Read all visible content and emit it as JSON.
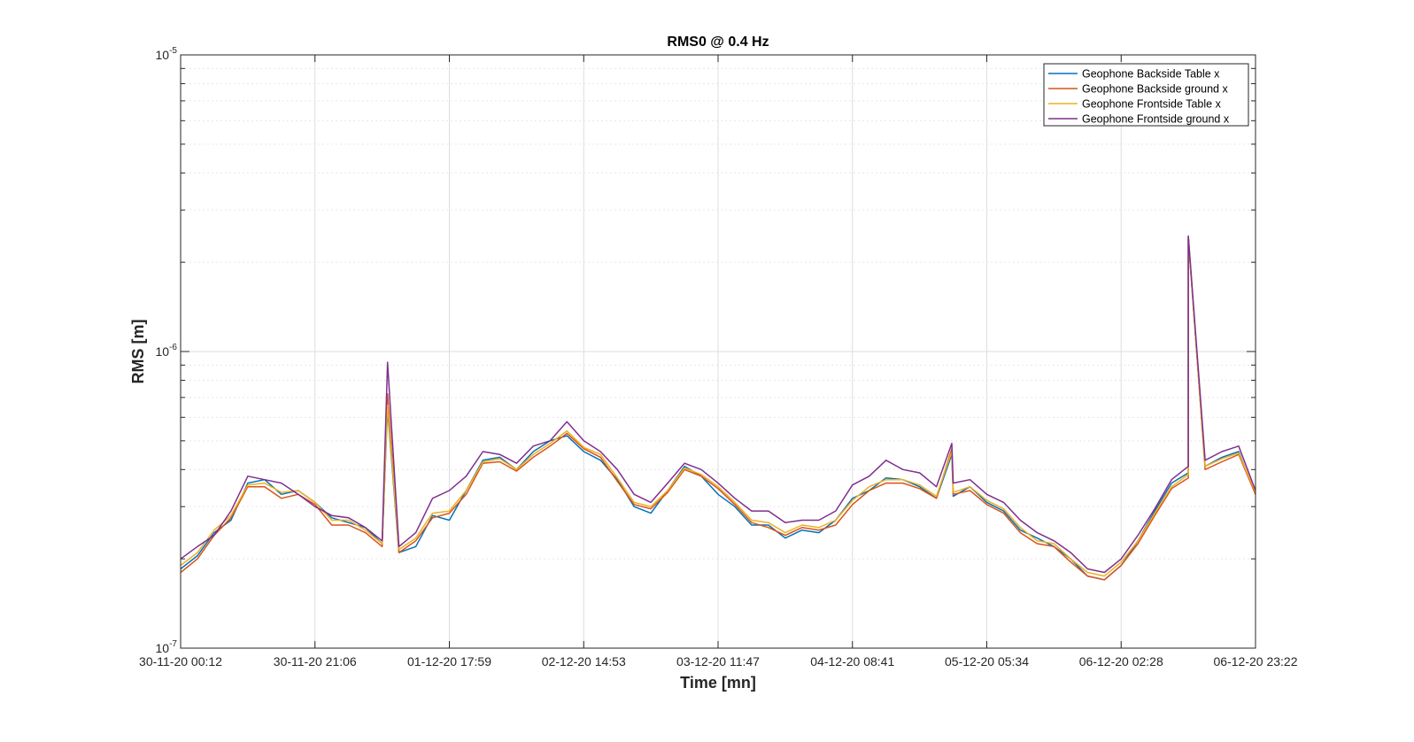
{
  "chart_data": {
    "type": "line",
    "title": "RMS0 @ 0.4 Hz",
    "xlabel": "Time [mn]",
    "ylabel": "RMS [m]",
    "y_scale": "log",
    "ylim": [
      1e-07,
      1e-05
    ],
    "y_ticks": [
      {
        "value": 1e-07,
        "base": "10",
        "exp": "-7"
      },
      {
        "value": 1e-06,
        "base": "10",
        "exp": "-6"
      },
      {
        "value": 1e-05,
        "base": "10",
        "exp": "-5"
      }
    ],
    "x_ticks": [
      "30-11-20 00:12",
      "30-11-20 21:06",
      "01-12-20 17:59",
      "02-12-20 14:53",
      "03-12-20 11:47",
      "04-12-20 08:41",
      "05-12-20 05:34",
      "06-12-20 02:28",
      "06-12-20 23:22"
    ],
    "x": [
      0,
      0.125,
      0.25,
      0.375,
      0.5,
      0.625,
      0.75,
      0.875,
      1,
      1.125,
      1.25,
      1.375,
      1.5,
      1.625,
      1.75,
      1.875,
      2,
      2.125,
      2.25,
      2.375,
      2.5,
      2.625,
      2.75,
      2.875,
      3,
      3.125,
      3.25,
      3.375,
      3.5,
      3.625,
      3.75,
      3.875,
      4,
      4.125,
      4.25,
      4.375,
      4.5,
      4.625,
      4.75,
      4.875,
      5,
      5.125,
      5.25,
      5.375,
      5.5,
      5.625,
      5.75,
      5.875,
      6,
      6.125,
      6.25,
      6.375,
      6.5,
      6.625,
      6.75,
      6.875,
      7,
      7.125,
      7.25,
      7.375,
      7.5,
      7.625,
      7.75,
      7.875,
      8
    ],
    "grid": true,
    "legend_position": "top-right",
    "series": [
      {
        "name": "Geophone Backside Table x",
        "color": "#0072BD",
        "values": [
          1.85e-07,
          2.05e-07,
          2.45e-07,
          2.7e-07,
          3.6e-07,
          3.7e-07,
          3.3e-07,
          3.4e-07,
          3.1e-07,
          2.75e-07,
          2.65e-07,
          2.55e-07,
          2.25e-07,
          2.1e-07,
          2.2e-07,
          2.8e-07,
          2.7e-07,
          3.4e-07,
          4.3e-07,
          4.4e-07,
          4e-07,
          4.6e-07,
          5e-07,
          5.2e-07,
          4.6e-07,
          4.3e-07,
          3.7e-07,
          3e-07,
          2.85e-07,
          3.4e-07,
          4.1e-07,
          3.8e-07,
          3.3e-07,
          3e-07,
          2.6e-07,
          2.6e-07,
          2.35e-07,
          2.5e-07,
          2.45e-07,
          2.7e-07,
          3.2e-07,
          3.4e-07,
          3.75e-07,
          3.7e-07,
          3.5e-07,
          3.2e-07,
          3.25e-07,
          3.5e-07,
          3.1e-07,
          2.9e-07,
          2.5e-07,
          2.35e-07,
          2.2e-07,
          2e-07,
          1.75e-07,
          1.7e-07,
          1.9e-07,
          2.3e-07,
          2.9e-07,
          3.6e-07,
          3.9e-07,
          4.1e-07,
          4.4e-07,
          4.6e-07,
          3.3e-07
        ]
      },
      {
        "name": "Geophone Backside ground x",
        "color": "#D95319",
        "values": [
          1.8e-07,
          2e-07,
          2.4e-07,
          2.75e-07,
          3.5e-07,
          3.5e-07,
          3.2e-07,
          3.3e-07,
          3.05e-07,
          2.6e-07,
          2.6e-07,
          2.45e-07,
          2.2e-07,
          2.1e-07,
          2.3e-07,
          2.75e-07,
          2.85e-07,
          3.3e-07,
          4.2e-07,
          4.25e-07,
          3.95e-07,
          4.4e-07,
          4.8e-07,
          5.3e-07,
          4.7e-07,
          4.4e-07,
          3.65e-07,
          3.05e-07,
          2.95e-07,
          3.35e-07,
          4e-07,
          3.8e-07,
          3.45e-07,
          3.05e-07,
          2.65e-07,
          2.55e-07,
          2.4e-07,
          2.55e-07,
          2.5e-07,
          2.6e-07,
          3.05e-07,
          3.4e-07,
          3.6e-07,
          3.6e-07,
          3.45e-07,
          3.2e-07,
          3.3e-07,
          3.4e-07,
          3.05e-07,
          2.85e-07,
          2.45e-07,
          2.25e-07,
          2.2e-07,
          1.95e-07,
          1.75e-07,
          1.7e-07,
          1.9e-07,
          2.25e-07,
          2.8e-07,
          3.45e-07,
          3.75e-07,
          4e-07,
          4.25e-07,
          4.5e-07,
          3.3e-07
        ]
      },
      {
        "name": "Geophone Frontside Table x",
        "color": "#EDB120",
        "values": [
          1.9e-07,
          2.1e-07,
          2.5e-07,
          2.8e-07,
          3.55e-07,
          3.6e-07,
          3.35e-07,
          3.4e-07,
          3.1e-07,
          2.7e-07,
          2.7e-07,
          2.5e-07,
          2.25e-07,
          2.15e-07,
          2.35e-07,
          2.85e-07,
          2.9e-07,
          3.4e-07,
          4.25e-07,
          4.35e-07,
          4e-07,
          4.5e-07,
          4.9e-07,
          5.4e-07,
          4.75e-07,
          4.5e-07,
          3.75e-07,
          3.1e-07,
          3e-07,
          3.4e-07,
          4.05e-07,
          3.85e-07,
          3.5e-07,
          3.1e-07,
          2.7e-07,
          2.65e-07,
          2.45e-07,
          2.6e-07,
          2.55e-07,
          2.7e-07,
          3.15e-07,
          3.5e-07,
          3.7e-07,
          3.7e-07,
          3.55e-07,
          3.25e-07,
          3.35e-07,
          3.5e-07,
          3.15e-07,
          2.95e-07,
          2.55e-07,
          2.3e-07,
          2.25e-07,
          2e-07,
          1.8e-07,
          1.75e-07,
          1.95e-07,
          2.3e-07,
          2.85e-07,
          3.5e-07,
          3.85e-07,
          4.1e-07,
          4.35e-07,
          4.55e-07,
          3.35e-07
        ]
      },
      {
        "name": "Geophone Frontside ground x",
        "color": "#7E2F8E",
        "values": [
          2e-07,
          2.2e-07,
          2.4e-07,
          2.9e-07,
          3.8e-07,
          3.7e-07,
          3.6e-07,
          3.3e-07,
          3e-07,
          2.8e-07,
          2.75e-07,
          2.55e-07,
          2.3e-07,
          2.2e-07,
          2.45e-07,
          3.2e-07,
          3.4e-07,
          3.8e-07,
          4.6e-07,
          4.5e-07,
          4.2e-07,
          4.8e-07,
          5e-07,
          5.8e-07,
          5e-07,
          4.6e-07,
          4e-07,
          3.3e-07,
          3.1e-07,
          3.6e-07,
          4.2e-07,
          4e-07,
          3.6e-07,
          3.2e-07,
          2.9e-07,
          2.9e-07,
          2.65e-07,
          2.7e-07,
          2.7e-07,
          2.9e-07,
          3.55e-07,
          3.8e-07,
          4.3e-07,
          4e-07,
          3.9e-07,
          3.5e-07,
          3.6e-07,
          3.7e-07,
          3.3e-07,
          3.1e-07,
          2.7e-07,
          2.45e-07,
          2.3e-07,
          2.1e-07,
          1.85e-07,
          1.8e-07,
          2e-07,
          2.4e-07,
          2.95e-07,
          3.7e-07,
          4.1e-07,
          4.3e-07,
          4.6e-07,
          4.8e-07,
          3.4e-07
        ]
      }
    ],
    "spikes": [
      {
        "x": 1.54,
        "values": [
          6.4e-07,
          7.2e-07,
          6.6e-07,
          9.2e-07
        ]
      },
      {
        "x": 5.74,
        "values": [
          4.5e-07,
          4.7e-07,
          4.6e-07,
          4.9e-07
        ]
      },
      {
        "x": 7.5,
        "values": [
          2.4e-06,
          2.45e-06,
          2.4e-06,
          2.45e-06
        ]
      }
    ]
  }
}
